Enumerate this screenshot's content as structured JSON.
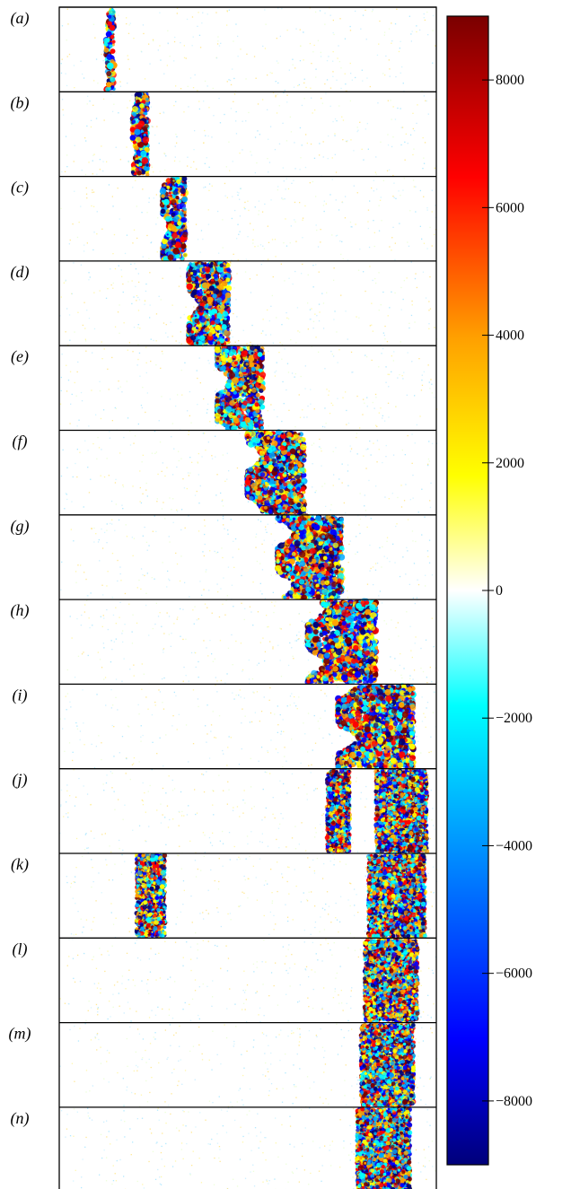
{
  "chart_data": {
    "type": "heatmap",
    "panels": [
      {
        "label": "(a)",
        "bands": [
          {
            "x": [
              0.125,
              0.145
            ],
            "kind": "interface"
          }
        ]
      },
      {
        "label": "(b)",
        "bands": [
          {
            "x": [
              0.195,
              0.235
            ],
            "kind": "interface"
          }
        ]
      },
      {
        "label": "(c)",
        "bands": [
          {
            "x": [
              0.275,
              0.335
            ],
            "kind": "interface"
          }
        ]
      },
      {
        "label": "(d)",
        "bands": [
          {
            "x": [
              0.345,
              0.45
            ],
            "kind": "interface"
          }
        ]
      },
      {
        "label": "(e)",
        "bands": [
          {
            "x": [
              0.42,
              0.54
            ],
            "kind": "interface"
          }
        ]
      },
      {
        "label": "(f)",
        "bands": [
          {
            "x": [
              0.5,
              0.65
            ],
            "kind": "interface"
          }
        ]
      },
      {
        "label": "(g)",
        "bands": [
          {
            "x": [
              0.58,
              0.75
            ],
            "kind": "interface"
          }
        ]
      },
      {
        "label": "(h)",
        "bands": [
          {
            "x": [
              0.66,
              0.84
            ],
            "kind": "interface"
          }
        ]
      },
      {
        "label": "(i)",
        "bands": [
          {
            "x": [
              0.74,
              0.94
            ],
            "kind": "interface"
          }
        ]
      },
      {
        "label": "(j)",
        "bands": [
          {
            "x": [
              0.71,
              0.77
            ],
            "kind": "dense"
          },
          {
            "x": [
              0.84,
              0.975
            ],
            "kind": "dense"
          }
        ]
      },
      {
        "label": "(k)",
        "bands": [
          {
            "x": [
              0.205,
              0.28
            ],
            "kind": "dense"
          },
          {
            "x": [
              0.82,
              0.97
            ],
            "kind": "dense"
          }
        ]
      },
      {
        "label": "(l)",
        "bands": [
          {
            "x": [
              0.81,
              0.95
            ],
            "kind": "dense"
          }
        ]
      },
      {
        "label": "(m)",
        "bands": [
          {
            "x": [
              0.8,
              0.94
            ],
            "kind": "dense"
          }
        ]
      },
      {
        "label": "(n)",
        "bands": [
          {
            "x": [
              0.79,
              0.93
            ],
            "kind": "dense"
          }
        ]
      }
    ],
    "colorbar": {
      "range": [
        -9000,
        9000
      ],
      "ticks": [
        8000,
        6000,
        4000,
        2000,
        0,
        -2000,
        -4000,
        -6000,
        -8000
      ],
      "tick_labels": [
        "8000",
        "6000",
        "4000",
        "2000",
        "0",
        "−2000",
        "−4000",
        "−6000",
        "−8000"
      ],
      "colormap": "jet-white-center",
      "colors": [
        "#00007a",
        "#0000ff",
        "#00a8ff",
        "#00ffff",
        "#ffffff",
        "#ffff00",
        "#ffa000",
        "#ff0000",
        "#7a0000"
      ]
    }
  }
}
